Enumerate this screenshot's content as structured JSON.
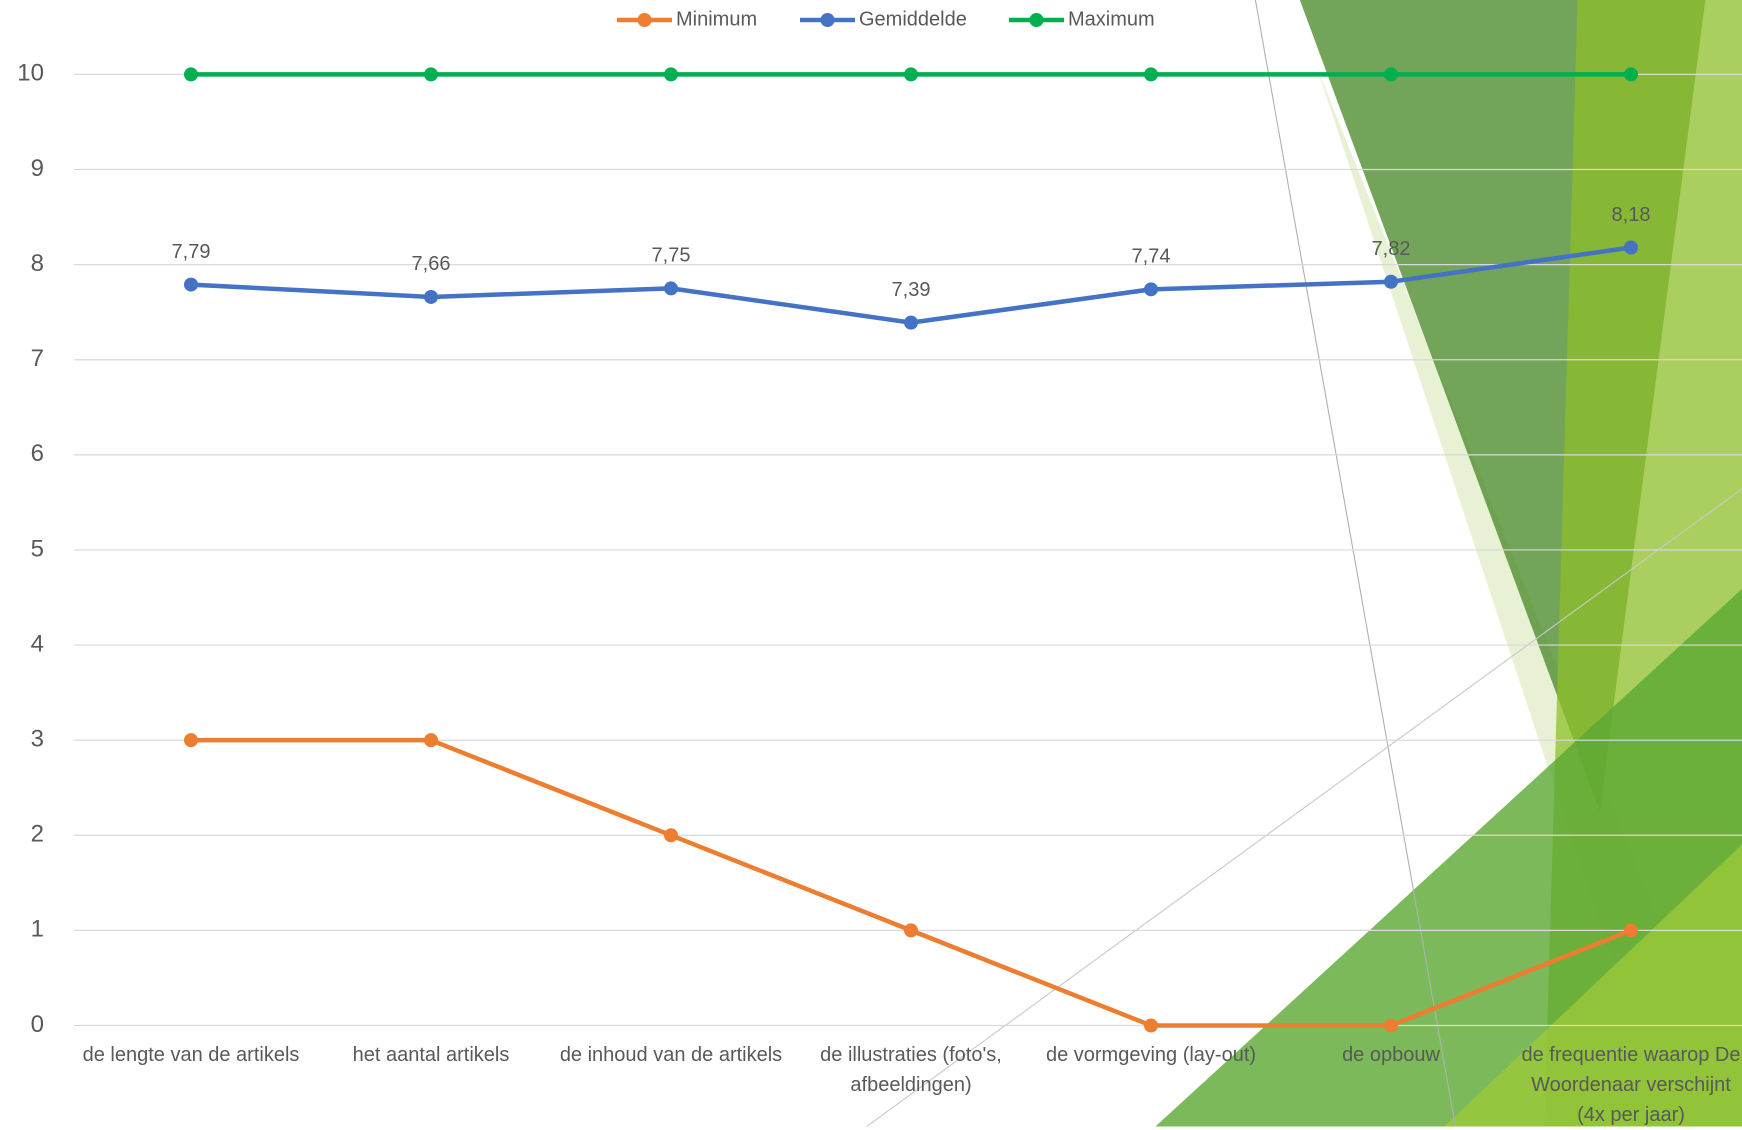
{
  "chart_data": {
    "type": "line",
    "categories": [
      "de lengte van de artikels",
      "het aantal artikels",
      "de inhoud van de artikels",
      "de illustraties (foto's, afbeeldingen)",
      "de vormgeving (lay-out)",
      "de opbouw",
      "de frequentie waarop De Woordenaar verschijnt (4x per jaar)"
    ],
    "series": [
      {
        "name": "Minimum",
        "color": "#ED7D31",
        "values": [
          3,
          3,
          2,
          1,
          0,
          0,
          1
        ]
      },
      {
        "name": "Gemiddelde",
        "color": "#4472C4",
        "values": [
          7.79,
          7.66,
          7.75,
          7.39,
          7.74,
          7.82,
          8.18
        ],
        "value_labels": [
          "7,79",
          "7,66",
          "7,75",
          "7,39",
          "7,74",
          "7,82",
          "8,18"
        ]
      },
      {
        "name": "Maximum",
        "color": "#00B050",
        "values": [
          10,
          10,
          10,
          10,
          10,
          10,
          10
        ]
      }
    ],
    "ylim": [
      0,
      10
    ],
    "yticks": [
      0,
      1,
      2,
      3,
      4,
      5,
      6,
      7,
      8,
      9,
      10
    ],
    "grid": true,
    "legend": "top"
  }
}
